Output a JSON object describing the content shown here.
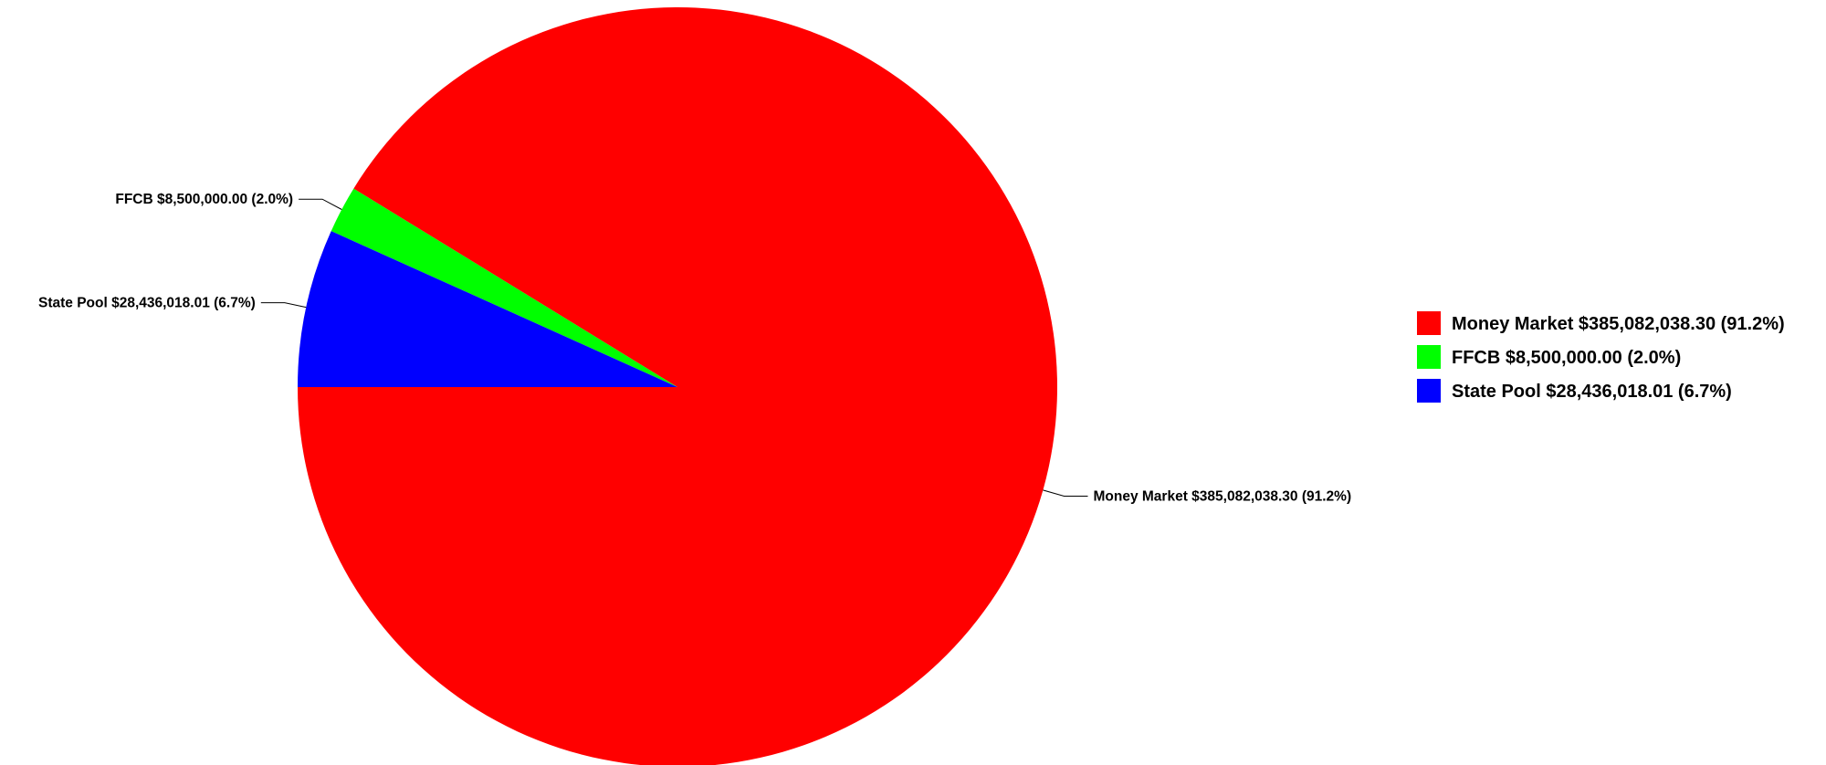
{
  "chart_data": {
    "type": "pie",
    "title": "",
    "legend_position": "right",
    "slices": [
      {
        "name": "Money Market",
        "amount": "$385,082,038.30",
        "value": 385082038.3,
        "percent": "91.2%",
        "color": "#ff0000"
      },
      {
        "name": "FFCB",
        "amount": "$8,500,000.00",
        "value": 8500000.0,
        "percent": "2.0%",
        "color": "#00ff00"
      },
      {
        "name": "State Pool",
        "amount": "$28,436,018.01",
        "value": 28436018.01,
        "percent": "6.7%",
        "color": "#0000ff"
      }
    ]
  }
}
